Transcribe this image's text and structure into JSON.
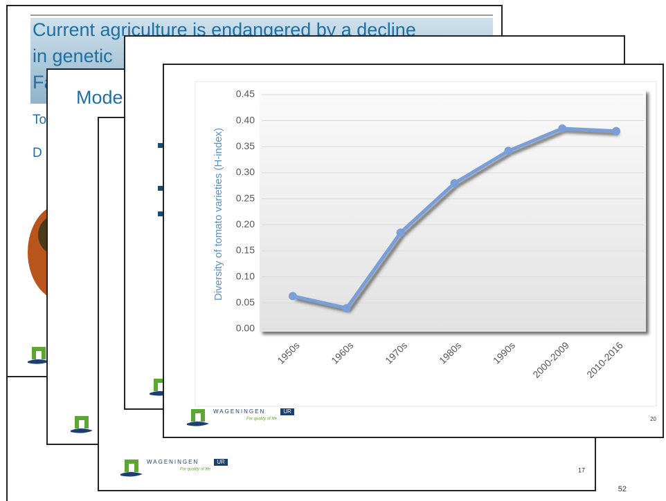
{
  "slides": {
    "back_title": [
      "Current agriculture is endangered by a decline",
      "in genetic",
      "Fa"
    ],
    "back_items": [
      "To",
      "D"
    ],
    "second_title": "Mode",
    "logo": {
      "name": "WAGENINGEN",
      "badge": "UR",
      "tagline": "For quality of life"
    },
    "page_numbers": [
      17,
      20,
      52
    ]
  },
  "chart_data": {
    "type": "line",
    "y_label": "Diversity of tomato varieties  (H-index)",
    "categories": [
      "1950s",
      "1960s",
      "1970s",
      "1980s",
      "1990s",
      "2000-2009",
      "2010-2016"
    ],
    "values": [
      0.063,
      0.04,
      0.185,
      0.28,
      0.342,
      0.385,
      0.38
    ],
    "color": "#7a9fd8",
    "ylim": [
      0,
      0.45
    ],
    "yticks": [
      {
        "value": 0,
        "label": "0.00"
      },
      0.05,
      {
        "value": 0.1,
        "label": "0.10"
      },
      0.15,
      {
        "value": 0.2,
        "label": "0.20"
      },
      0.25,
      {
        "value": 0.3,
        "label": "0.30"
      },
      0.35,
      {
        "value": 0.4,
        "label": "0.40"
      },
      0.45
    ],
    "grid": true
  }
}
